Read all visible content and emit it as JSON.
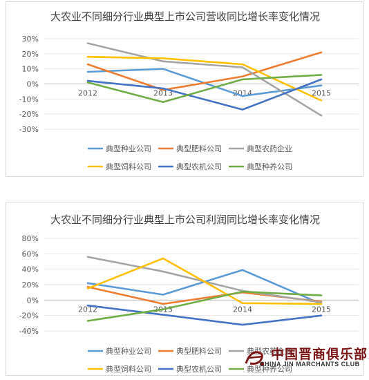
{
  "chart_data": [
    {
      "type": "line",
      "title": "大农业不同细分行业典型上市公司营收同比增长率变化情况",
      "categories": [
        "2012",
        "2013",
        "2014",
        "2015"
      ],
      "yticks": [
        "30%",
        "20%",
        "10%",
        "0%",
        "-10%",
        "-20%",
        "-30%"
      ],
      "ylim": [
        -30,
        30
      ],
      "unit": "%",
      "grid": true,
      "legend_position": "bottom",
      "series": [
        {
          "name": "典型种业公司",
          "color": "#5B9BD5",
          "values": [
            8,
            10,
            -8,
            -1
          ]
        },
        {
          "name": "典型肥料公司",
          "color": "#ED7D31",
          "values": [
            13,
            -4,
            5,
            21
          ]
        },
        {
          "name": "典型农药企业",
          "color": "#A5A5A5",
          "values": [
            27,
            15,
            11,
            -21
          ]
        },
        {
          "name": "典型饲料公司",
          "color": "#FFC000",
          "values": [
            18,
            17,
            13,
            -11
          ]
        },
        {
          "name": "典型农机公司",
          "color": "#4472C4",
          "values": [
            2,
            -3,
            -17,
            3
          ]
        },
        {
          "name": "典型种养公司",
          "color": "#70AD47",
          "values": [
            1,
            -12,
            3,
            6
          ]
        }
      ]
    },
    {
      "type": "line",
      "title": "大农业不同细分行业典型上市公司利润同比增长率变化情况",
      "categories": [
        "2012",
        "2013",
        "2014",
        "2015"
      ],
      "yticks": [
        "80%",
        "60%",
        "40%",
        "20%",
        "0%",
        "-20%",
        "-40%"
      ],
      "ylim": [
        -40,
        80
      ],
      "unit": "%",
      "grid": true,
      "legend_position": "bottom",
      "series": [
        {
          "name": "典型种业公司",
          "color": "#5B9BD5",
          "values": [
            22,
            7,
            39,
            -5
          ]
        },
        {
          "name": "典型肥料公司",
          "color": "#ED7D31",
          "values": [
            17,
            -5,
            10,
            -2
          ]
        },
        {
          "name": "典型农药企业",
          "color": "#A5A5A5",
          "values": [
            56,
            37,
            12,
            -3
          ]
        },
        {
          "name": "典型饲料公司",
          "color": "#FFC000",
          "values": [
            15,
            54,
            -4,
            -5
          ]
        },
        {
          "name": "典型农机公司",
          "color": "#4472C4",
          "values": [
            -7,
            -19,
            -32,
            -20
          ]
        },
        {
          "name": "典型种养公司",
          "color": "#70AD47",
          "values": [
            -27,
            -12,
            11,
            6
          ]
        }
      ]
    }
  ],
  "watermark": {
    "cn": "中国晋商俱乐部",
    "en": "CHINA JIN MARCHANTS CLUB",
    "color": "#7A1515"
  }
}
